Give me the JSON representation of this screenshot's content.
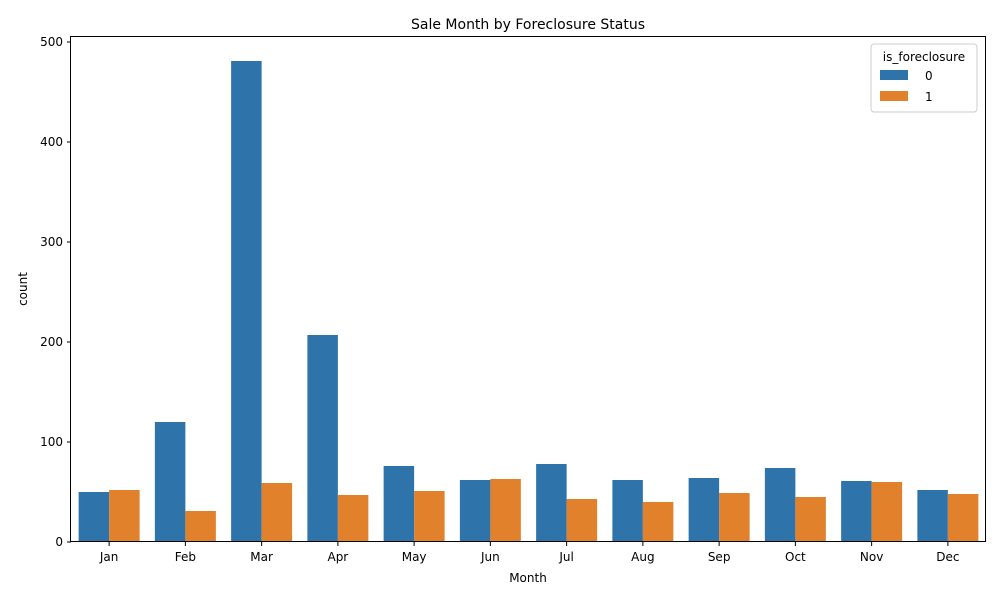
{
  "chart_data": {
    "type": "bar",
    "title": "Sale Month by Foreclosure Status",
    "xlabel": "Month",
    "ylabel": "count",
    "ylim": [
      0,
      505
    ],
    "yticks": [
      0,
      100,
      200,
      300,
      400,
      500
    ],
    "categories": [
      "Jan",
      "Feb",
      "Mar",
      "Apr",
      "May",
      "Jun",
      "Jul",
      "Aug",
      "Sep",
      "Oct",
      "Nov",
      "Dec"
    ],
    "legend": {
      "title": "is_foreclosure",
      "placement": "top-right"
    },
    "grid": false,
    "series": [
      {
        "name": "0",
        "color": "#2f73ab",
        "values": [
          50,
          120,
          481,
          207,
          76,
          62,
          78,
          62,
          64,
          74,
          61,
          52
        ]
      },
      {
        "name": "1",
        "color": "#e1812c",
        "values": [
          52,
          31,
          59,
          47,
          51,
          63,
          43,
          40,
          49,
          45,
          60,
          48
        ]
      }
    ]
  }
}
